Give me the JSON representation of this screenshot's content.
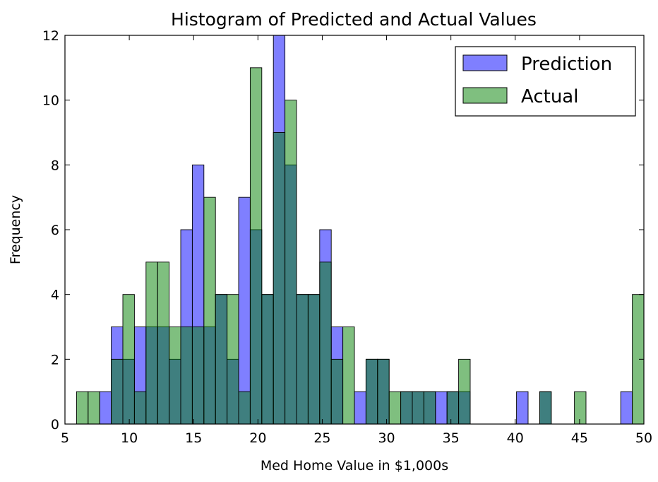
{
  "chart_data": {
    "type": "bar",
    "title": "Histogram of Predicted and Actual Values",
    "xlabel": "Med Home Value in $1,000s",
    "ylabel": "Frequency",
    "xlim": [
      5,
      50
    ],
    "ylim": [
      0,
      12
    ],
    "xticks": [
      5,
      10,
      15,
      20,
      25,
      30,
      35,
      40,
      45,
      50
    ],
    "yticks": [
      0,
      2,
      4,
      6,
      8,
      10,
      12
    ],
    "grid": false,
    "legend_position": "top-right",
    "bins": [
      [
        5.0,
        5.9
      ],
      [
        5.9,
        6.8
      ],
      [
        6.8,
        7.7
      ],
      [
        7.7,
        8.6
      ],
      [
        8.6,
        9.5
      ],
      [
        9.5,
        10.4
      ],
      [
        10.4,
        11.3
      ],
      [
        11.3,
        12.2
      ],
      [
        12.2,
        13.1
      ],
      [
        13.1,
        14.0
      ],
      [
        14.0,
        14.9
      ],
      [
        14.9,
        15.8
      ],
      [
        15.8,
        16.7
      ],
      [
        16.7,
        17.6
      ],
      [
        17.6,
        18.5
      ],
      [
        18.5,
        19.4
      ],
      [
        19.4,
        20.3
      ],
      [
        20.3,
        21.2
      ],
      [
        21.2,
        22.1
      ],
      [
        22.1,
        23.0
      ],
      [
        23.0,
        23.9
      ],
      [
        23.9,
        24.8
      ],
      [
        24.8,
        25.7
      ],
      [
        25.7,
        26.6
      ],
      [
        26.6,
        27.5
      ],
      [
        27.5,
        28.4
      ],
      [
        28.4,
        29.3
      ],
      [
        29.3,
        30.2
      ],
      [
        30.2,
        31.1
      ],
      [
        31.1,
        32.0
      ],
      [
        32.0,
        32.9
      ],
      [
        32.9,
        33.8
      ],
      [
        33.8,
        34.7
      ],
      [
        34.7,
        35.6
      ],
      [
        35.6,
        36.5
      ],
      [
        36.5,
        37.4
      ],
      [
        37.4,
        38.3
      ],
      [
        38.3,
        39.2
      ],
      [
        39.2,
        40.1
      ],
      [
        40.1,
        41.0
      ],
      [
        41.0,
        41.9
      ],
      [
        41.9,
        42.8
      ],
      [
        42.8,
        43.7
      ],
      [
        43.7,
        44.6
      ],
      [
        44.6,
        45.5
      ],
      [
        45.5,
        46.4
      ],
      [
        46.4,
        47.3
      ],
      [
        47.3,
        48.2
      ],
      [
        48.2,
        49.1
      ],
      [
        49.1,
        50.0
      ]
    ],
    "series": [
      {
        "name": "Prediction",
        "color": "#0000ff",
        "opacity": 0.5,
        "values": [
          0,
          0,
          0,
          1,
          3,
          2,
          3,
          3,
          3,
          2,
          6,
          8,
          3,
          4,
          2,
          7,
          6,
          4,
          12,
          8,
          4,
          4,
          6,
          3,
          0,
          1,
          2,
          2,
          0,
          1,
          1,
          1,
          1,
          1,
          1,
          0,
          0,
          0,
          0,
          1,
          0,
          1,
          0,
          0,
          0,
          0,
          0,
          0,
          1,
          0
        ]
      },
      {
        "name": "Actual",
        "color": "#008000",
        "opacity": 0.5,
        "values": [
          0,
          1,
          1,
          0,
          2,
          4,
          1,
          5,
          5,
          3,
          3,
          3,
          7,
          4,
          4,
          1,
          11,
          4,
          9,
          10,
          4,
          4,
          5,
          2,
          3,
          0,
          2,
          2,
          1,
          1,
          1,
          1,
          0,
          1,
          2,
          0,
          0,
          0,
          0,
          0,
          0,
          1,
          0,
          0,
          1,
          0,
          0,
          0,
          0,
          4
        ]
      }
    ]
  }
}
